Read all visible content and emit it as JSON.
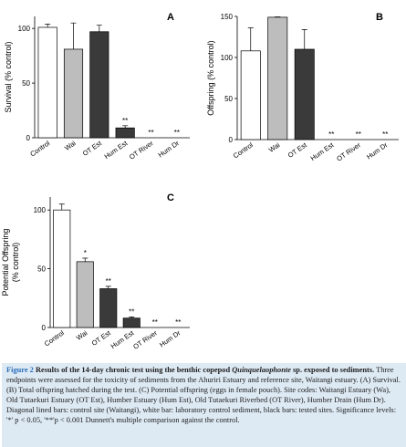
{
  "chart_data": [
    {
      "type": "bar",
      "panel": "A",
      "ylabel": "Survival (% control)",
      "categories": [
        "Control",
        "Wai",
        "OT Est",
        "Hum Est",
        "OT River",
        "Hum Dr"
      ],
      "values": [
        101,
        81,
        97,
        9,
        0,
        0
      ],
      "errors": [
        3,
        24,
        6,
        2,
        null,
        null
      ],
      "significance": [
        null,
        null,
        null,
        "**",
        "**",
        "**"
      ],
      "colors": [
        "#ffffff",
        "#bdbdbd",
        "#3a3a3a",
        "#3a3a3a",
        "#3a3a3a",
        "#3a3a3a"
      ],
      "ylim": [
        0,
        111
      ],
      "yticks": [
        0,
        50,
        100
      ]
    },
    {
      "type": "bar",
      "panel": "B",
      "ylabel": "Offspring (% control)",
      "categories": [
        "Control",
        "Wai",
        "OT Est",
        "Hum Est",
        "OT River",
        "Hum Dr"
      ],
      "values": [
        108,
        149,
        110,
        0,
        0,
        0
      ],
      "errors": [
        28,
        0.5,
        24,
        null,
        null,
        null
      ],
      "significance": [
        null,
        null,
        null,
        "**",
        "**",
        "**"
      ],
      "colors": [
        "#ffffff",
        "#bdbdbd",
        "#3a3a3a",
        "#3a3a3a",
        "#3a3a3a",
        "#3a3a3a"
      ],
      "ylim": [
        0,
        150
      ],
      "yticks": [
        0,
        50,
        100,
        150
      ]
    },
    {
      "type": "bar",
      "panel": "C",
      "ylabel": [
        "Potential Offspring",
        "(% control)"
      ],
      "categories": [
        "Control",
        "Wai",
        "OT Est",
        "Hum Est",
        "OT River",
        "Hum Dr"
      ],
      "values": [
        100,
        56,
        33,
        8,
        0,
        0
      ],
      "errors": [
        5,
        3,
        2,
        1,
        null,
        null
      ],
      "significance": [
        null,
        "*",
        "**",
        "**",
        "**",
        "**"
      ],
      "colors": [
        "#ffffff",
        "#bdbdbd",
        "#3a3a3a",
        "#3a3a3a",
        "#3a3a3a",
        "#3a3a3a"
      ],
      "ylim": [
        0,
        111
      ],
      "yticks": [
        0,
        50,
        100
      ]
    }
  ],
  "caption": {
    "label": "Figure 2",
    "title": [
      "Results of the 14-day chronic test using the benthic copepod ",
      "Quinquelaophonte",
      " sp. exposed to sediments."
    ],
    "text": "Three endpoints were assessed for the toxicity of sediments from the Ahuriri Estuary and reference site, Waitangi estuary. (A) Survival. (B) Total offspring hatched during the test. (C) Potential offspring (eggs in female pouch). Site codes: Waitangi Estuary (Wa), Old Tutaekuri Estuary (OT Est), Humber Estuary (Hum Est), Old Tutaekuri Riverbed (OT River), Humber Drain (Hum Dr). Diagonal lined bars: control site (Waitangi), white bar: laboratory control sediment, black bars: tested sites. Significance levels: '*' p < 0.05, '**'p < 0.001 Dunnett's multiple comparison against the control."
  }
}
